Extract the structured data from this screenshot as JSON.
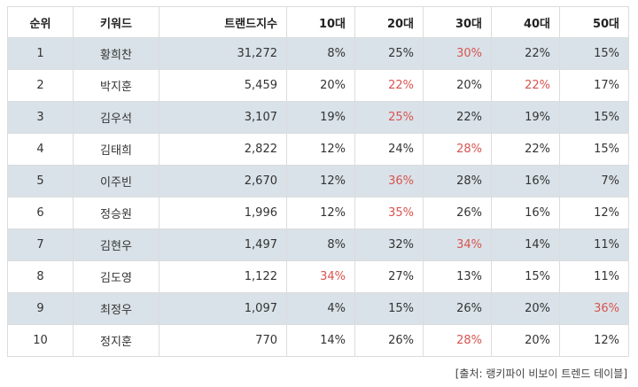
{
  "headers": [
    "순위",
    "키워드",
    "트랜드지수",
    "10대",
    "20대",
    "30대",
    "40대",
    "50대"
  ],
  "colors": {
    "highlight": "#d9534f",
    "stripe": "#d9e2e8",
    "text": "#333333"
  },
  "rows": [
    {
      "cells": [
        "1",
        "황희찬",
        "31,272",
        "8%",
        "25%",
        "30%",
        "22%",
        "15%"
      ],
      "hi": [
        5
      ]
    },
    {
      "cells": [
        "2",
        "박지훈",
        "5,459",
        "20%",
        "22%",
        "20%",
        "22%",
        "17%"
      ],
      "hi": [
        4,
        6
      ]
    },
    {
      "cells": [
        "3",
        "김우석",
        "3,107",
        "19%",
        "25%",
        "22%",
        "19%",
        "15%"
      ],
      "hi": [
        4
      ]
    },
    {
      "cells": [
        "4",
        "김태희",
        "2,822",
        "12%",
        "24%",
        "28%",
        "22%",
        "15%"
      ],
      "hi": [
        5
      ]
    },
    {
      "cells": [
        "5",
        "이주빈",
        "2,670",
        "12%",
        "36%",
        "28%",
        "16%",
        "7%"
      ],
      "hi": [
        4
      ]
    },
    {
      "cells": [
        "6",
        "정승원",
        "1,996",
        "12%",
        "35%",
        "26%",
        "16%",
        "12%"
      ],
      "hi": [
        4
      ]
    },
    {
      "cells": [
        "7",
        "김현우",
        "1,497",
        "8%",
        "32%",
        "34%",
        "14%",
        "11%"
      ],
      "hi": [
        5
      ]
    },
    {
      "cells": [
        "8",
        "김도영",
        "1,122",
        "34%",
        "27%",
        "13%",
        "15%",
        "11%"
      ],
      "hi": [
        3
      ]
    },
    {
      "cells": [
        "9",
        "최정우",
        "1,097",
        "4%",
        "15%",
        "26%",
        "20%",
        "36%"
      ],
      "hi": [
        7
      ]
    },
    {
      "cells": [
        "10",
        "정지훈",
        "770",
        "14%",
        "26%",
        "28%",
        "20%",
        "12%"
      ],
      "hi": [
        5
      ]
    }
  ],
  "caption": "[출처: 랭키파이 비보이 트렌드 테이블]"
}
